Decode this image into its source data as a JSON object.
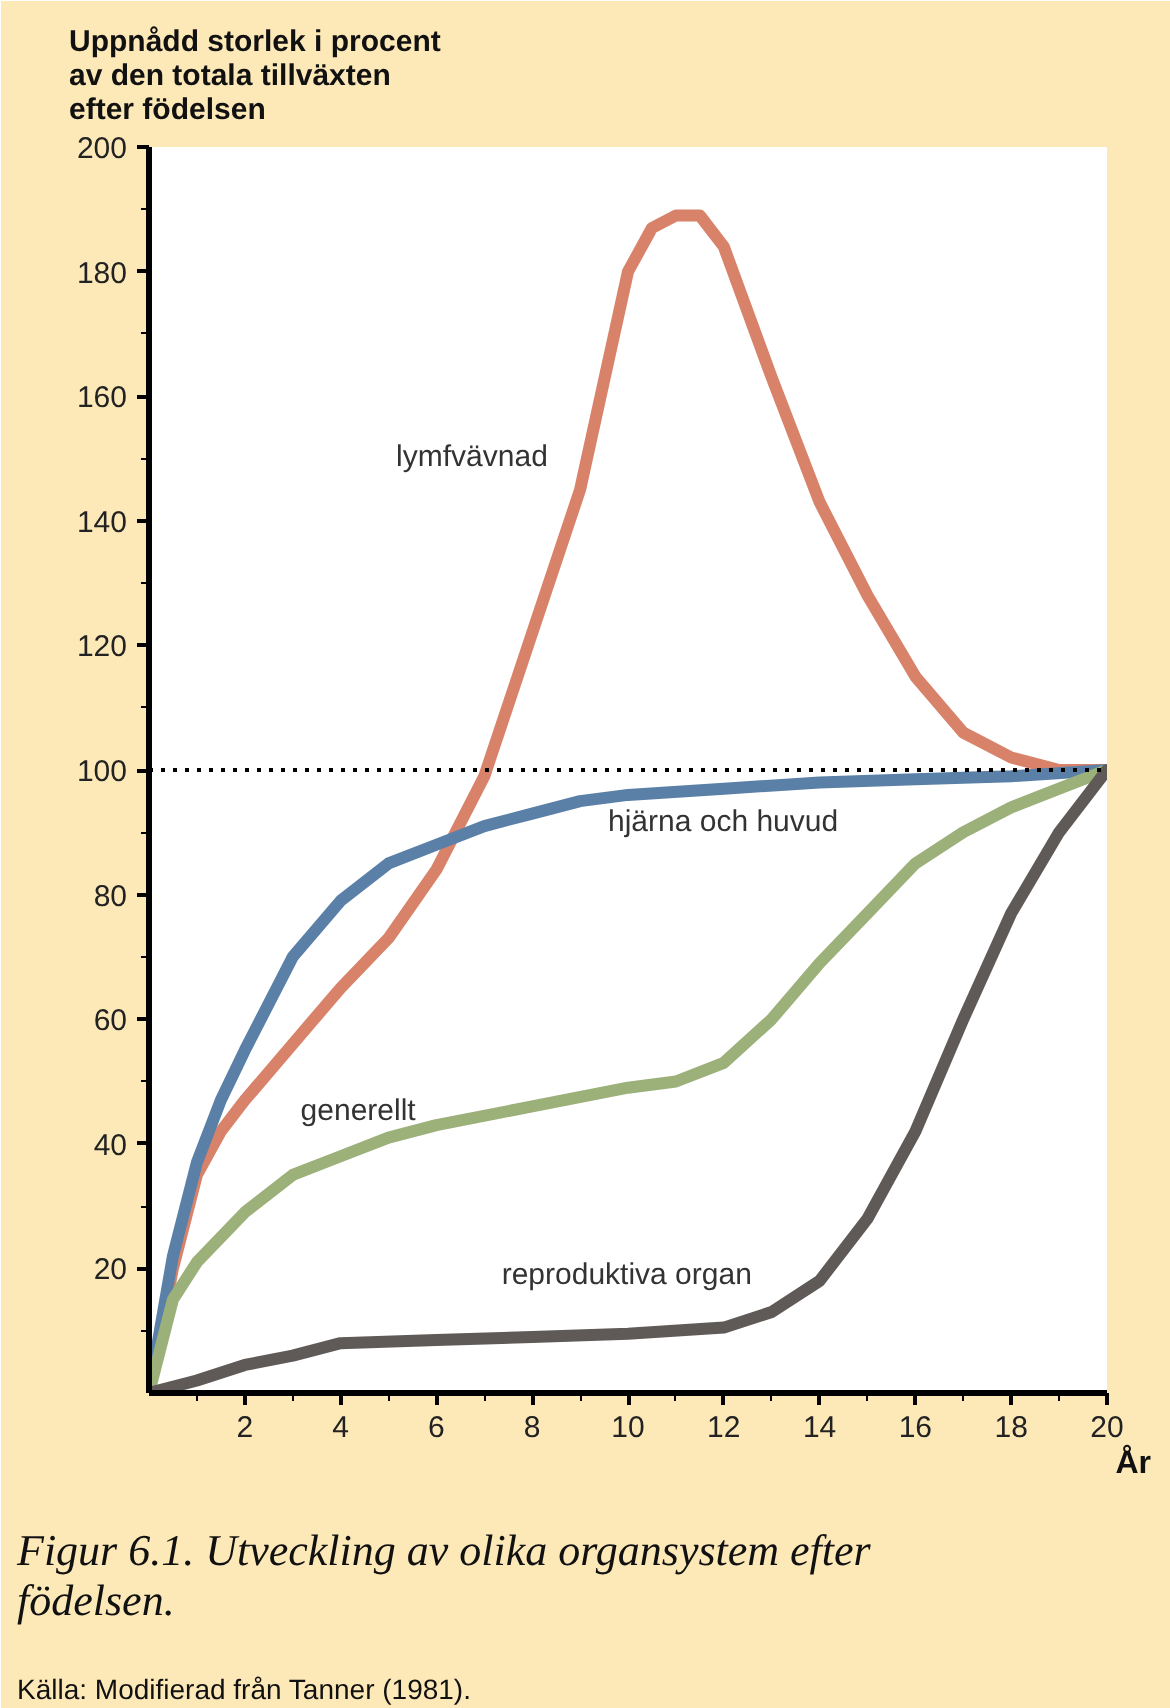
{
  "chart_data": {
    "type": "line",
    "ylabel": "Uppnådd storlek i procent av den totala tillväxten efter födelsen",
    "xlabel": "År",
    "series": [
      {
        "name": "lymfvävnad",
        "color": "#d9826a",
        "x": [
          0,
          0.5,
          1,
          1.5,
          2,
          3,
          4,
          5,
          6,
          7,
          8,
          9,
          10,
          10.5,
          11,
          11.5,
          12,
          13,
          14,
          15,
          16,
          17,
          18,
          19,
          20
        ],
        "values": [
          0,
          20,
          35,
          42,
          47,
          56,
          65,
          73,
          84,
          99,
          122,
          145,
          180,
          187,
          189,
          189,
          184,
          163,
          143,
          128,
          115,
          106,
          102,
          100,
          100
        ]
      },
      {
        "name": "hjärna och huvud",
        "color": "#5b80a8",
        "x": [
          0,
          0.5,
          1,
          1.5,
          2,
          3,
          4,
          5,
          6,
          7,
          8,
          9,
          10,
          12,
          14,
          16,
          18,
          20
        ],
        "values": [
          0,
          22,
          37,
          47,
          55,
          70,
          79,
          85,
          88,
          91,
          93,
          95,
          96,
          97,
          98,
          98.5,
          99,
          100
        ]
      },
      {
        "name": "generellt",
        "color": "#9cb07a",
        "x": [
          0,
          0.5,
          1,
          2,
          3,
          4,
          5,
          6,
          8,
          10,
          11,
          12,
          13,
          14,
          15,
          16,
          17,
          18,
          19,
          20
        ],
        "values": [
          0,
          15,
          21,
          29,
          35,
          38,
          41,
          43,
          46,
          49,
          50,
          53,
          60,
          69,
          77,
          85,
          90,
          94,
          97,
          100
        ]
      },
      {
        "name": "reproduktiva organ",
        "color": "#5f5a57",
        "x": [
          0,
          1,
          2,
          3,
          4,
          6,
          8,
          10,
          12,
          13,
          14,
          15,
          16,
          17,
          18,
          19,
          20
        ],
        "values": [
          0,
          2,
          4.5,
          6,
          8,
          8.5,
          9,
          9.5,
          10.5,
          13,
          18,
          28,
          42,
          60,
          77,
          90,
          100
        ]
      }
    ],
    "xlim": [
      0,
      20
    ],
    "xticks": [
      {
        "value": 1,
        "label": null
      },
      2,
      {
        "value": 3,
        "label": null
      },
      4,
      {
        "value": 5,
        "label": null
      },
      6,
      {
        "value": 7,
        "label": null
      },
      8,
      {
        "value": 9,
        "label": null
      },
      10,
      {
        "value": 11,
        "label": null
      },
      12,
      {
        "value": 13,
        "label": null
      },
      14,
      {
        "value": 15,
        "label": null
      },
      16,
      {
        "value": 17,
        "label": null
      },
      18,
      {
        "value": 19,
        "label": null
      },
      20
    ],
    "ylim": [
      0,
      200
    ],
    "yticks": [
      {
        "value": 10,
        "label": null
      },
      20,
      {
        "value": 30,
        "label": null
      },
      40,
      {
        "value": 50,
        "label": null
      },
      60,
      {
        "value": 70,
        "label": null
      },
      80,
      {
        "value": 90,
        "label": null
      },
      100,
      {
        "value": 110,
        "label": null
      },
      120,
      {
        "value": 130,
        "label": null
      },
      140,
      {
        "value": 150,
        "label": null
      },
      160,
      {
        "value": 170,
        "label": null
      },
      180,
      {
        "value": 190,
        "label": null
      },
      200
    ],
    "ref_lines": [
      {
        "axis": "y",
        "value": 100,
        "label": null,
        "color": "#000000",
        "line_style": "dotted"
      }
    ],
    "grid": false,
    "marker": "none",
    "line_style": "solid",
    "annotations": [
      "Figur 6.1.  Utveckling av olika organsystem efter födelsen.",
      "Källa: Modifierad från Tanner (1981)."
    ]
  }
}
